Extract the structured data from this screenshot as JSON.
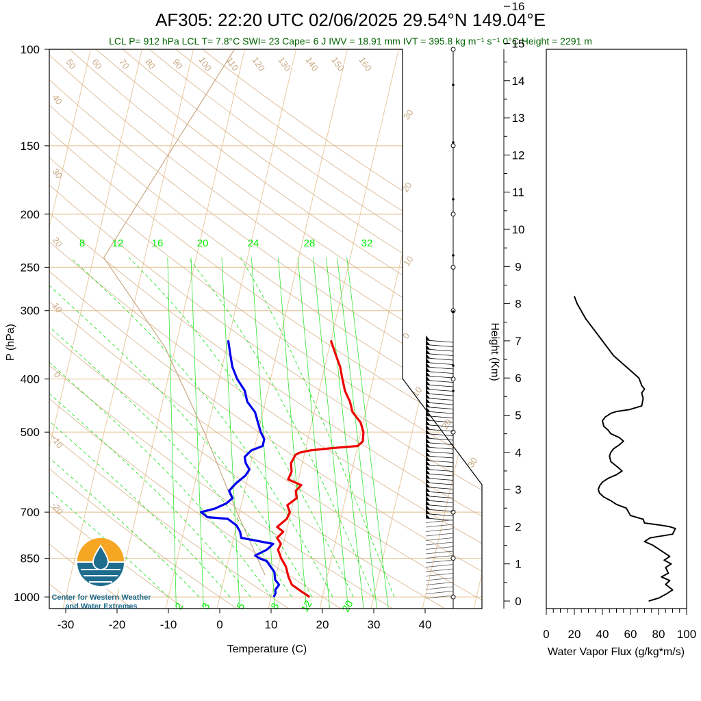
{
  "header": {
    "title": "AF305: 22:20 UTC 02/06/2025  29.54°N 149.04°E",
    "indices": "LCL P= 912 hPa  LCL T= 7.8°C  SWI= 23  Cape= 6 J  IWV = 18.91 mm  IVT = 395.8 kg m⁻¹ s⁻¹  0°C Height = 2291 m"
  },
  "logo": {
    "line1": "Center for Western Weather",
    "line2": "and Water Extremes"
  },
  "colors": {
    "temperature": "#ee0000",
    "dewpoint": "#0000ee",
    "dry_adiabat": "#d2a679",
    "moist_adiabat": "#00dd00",
    "isobar": "#e8c9a0",
    "parcel": "#c8a882"
  },
  "chart_data": [
    {
      "type": "line",
      "subtype": "skew-T log-p",
      "xlabel": "Temperature (C)",
      "ylabel": "P (hPa)",
      "right_label": "Height (Km)",
      "x_ticks": [
        -30,
        -20,
        -10,
        0,
        10,
        20,
        30,
        40
      ],
      "p_ticks": [
        100,
        150,
        200,
        250,
        300,
        400,
        500,
        700,
        850,
        1000
      ],
      "height_ticks": [
        0,
        1,
        2,
        3,
        4,
        5,
        6,
        7,
        8,
        9,
        10,
        11,
        12,
        13,
        14,
        15,
        16
      ],
      "xlim": [
        -34,
        50
      ],
      "plim": [
        1050,
        100
      ],
      "mixing_ratio_labels": [
        "8",
        "12",
        "16",
        "20",
        "24",
        "28",
        "32"
      ],
      "mixing_ratio_low_labels": [
        "2",
        "3",
        "5",
        "8",
        "12",
        "20"
      ],
      "theta_labels_top": [
        "50",
        "60",
        "70",
        "80",
        "90",
        "100",
        "110",
        "120",
        "130",
        "140",
        "150",
        "160"
      ],
      "theta_labels_left": [
        "40",
        "30",
        "20",
        "10",
        "0",
        "-10",
        "-20"
      ],
      "theta_labels_right": [
        "30",
        "20",
        "10",
        "0",
        "10",
        "20",
        "30"
      ],
      "series": [
        {
          "name": "Temperature",
          "points": [
            [
              17.5,
              1000
            ],
            [
              15.5,
              975
            ],
            [
              13.5,
              950
            ],
            [
              12.5,
              920
            ],
            [
              11.5,
              880
            ],
            [
              10.2,
              850
            ],
            [
              9.2,
              820
            ],
            [
              9.5,
              800
            ],
            [
              8.5,
              780
            ],
            [
              9.4,
              760
            ],
            [
              8.0,
              745
            ],
            [
              9.5,
              720
            ],
            [
              9.8,
              700
            ],
            [
              9.0,
              680
            ],
            [
              10.5,
              660
            ],
            [
              10.0,
              640
            ],
            [
              10.8,
              625
            ],
            [
              8.0,
              610
            ],
            [
              8.3,
              590
            ],
            [
              7.8,
              570
            ],
            [
              8.3,
              550
            ],
            [
              9.0,
              545
            ],
            [
              11.0,
              540
            ],
            [
              15.0,
              535
            ],
            [
              20.0,
              530
            ],
            [
              20.8,
              520
            ],
            [
              20.5,
              500
            ],
            [
              19.5,
              480
            ],
            [
              17.5,
              460
            ],
            [
              16.5,
              440
            ],
            [
              15.0,
              420
            ],
            [
              14.0,
              400
            ],
            [
              13.0,
              380
            ],
            [
              11.5,
              360
            ],
            [
              10.0,
              340
            ]
          ]
        },
        {
          "name": "Dewpoint",
          "points": [
            [
              10.5,
              1000
            ],
            [
              10.7,
              985
            ],
            [
              10.5,
              970
            ],
            [
              11.0,
              950
            ],
            [
              10.0,
              930
            ],
            [
              9.5,
              900
            ],
            [
              8.5,
              880
            ],
            [
              7.5,
              860
            ],
            [
              6.0,
              850
            ],
            [
              5.0,
              840
            ],
            [
              7.0,
              820
            ],
            [
              8.0,
              800
            ],
            [
              1.5,
              780
            ],
            [
              1.0,
              760
            ],
            [
              0.0,
              740
            ],
            [
              -2.0,
              720
            ],
            [
              -6.0,
              715
            ],
            [
              -7.5,
              700
            ],
            [
              -5.0,
              690
            ],
            [
              -3.0,
              675
            ],
            [
              -2.0,
              660
            ],
            [
              -3.0,
              640
            ],
            [
              -2.0,
              620
            ],
            [
              -0.5,
              600
            ],
            [
              0.0,
              585
            ],
            [
              -1.0,
              570
            ],
            [
              -1.5,
              555
            ],
            [
              -0.5,
              540
            ],
            [
              1.5,
              530
            ],
            [
              1.5,
              515
            ],
            [
              0.5,
              500
            ],
            [
              -0.5,
              480
            ],
            [
              -1.5,
              460
            ],
            [
              -3.5,
              440
            ],
            [
              -4.5,
              420
            ],
            [
              -6.5,
              400
            ],
            [
              -8.0,
              380
            ],
            [
              -9.0,
              360
            ],
            [
              -10.0,
              340
            ]
          ]
        },
        {
          "name": "Parcel",
          "points": [
            [
              7.8,
              912
            ],
            [
              -0.5,
              700
            ],
            [
              -10.5,
              500
            ],
            [
              -22.0,
              350
            ],
            [
              -38.0,
              240
            ],
            [
              -22.0,
              100
            ]
          ]
        }
      ]
    },
    {
      "type": "line",
      "xlabel": "Water Vapor Flux (g/kg*m/s)",
      "x_ticks": [
        0,
        20,
        40,
        60,
        80,
        100
      ],
      "xlim": [
        0,
        100
      ],
      "ylim": [
        -0.2,
        16.3
      ],
      "series": [
        {
          "name": "Water Vapor Flux",
          "points": [
            [
              73,
              0.0
            ],
            [
              80,
              0.08
            ],
            [
              86,
              0.2
            ],
            [
              90,
              0.3
            ],
            [
              85,
              0.45
            ],
            [
              88,
              0.55
            ],
            [
              82,
              0.65
            ],
            [
              87,
              0.75
            ],
            [
              85,
              0.9
            ],
            [
              89,
              1.0
            ],
            [
              84,
              1.1
            ],
            [
              88,
              1.2
            ],
            [
              82,
              1.35
            ],
            [
              76,
              1.5
            ],
            [
              70,
              1.6
            ],
            [
              74,
              1.7
            ],
            [
              90,
              1.8
            ],
            [
              92,
              1.95
            ],
            [
              88,
              2.0
            ],
            [
              80,
              2.05
            ],
            [
              70,
              2.1
            ],
            [
              69,
              2.2
            ],
            [
              60,
              2.3
            ],
            [
              57,
              2.5
            ],
            [
              50,
              2.6
            ],
            [
              46,
              2.7
            ],
            [
              41,
              2.8
            ],
            [
              38,
              2.9
            ],
            [
              37,
              3.0
            ],
            [
              38,
              3.1
            ],
            [
              40,
              3.2
            ],
            [
              44,
              3.3
            ],
            [
              50,
              3.4
            ],
            [
              54,
              3.5
            ],
            [
              51,
              3.6
            ],
            [
              46,
              3.75
            ],
            [
              45,
              3.9
            ],
            [
              46,
              4.0
            ],
            [
              48,
              4.1
            ],
            [
              52,
              4.2
            ],
            [
              55,
              4.3
            ],
            [
              52,
              4.4
            ],
            [
              46,
              4.5
            ],
            [
              44,
              4.6
            ],
            [
              41,
              4.7
            ],
            [
              40,
              4.85
            ],
            [
              42,
              4.95
            ],
            [
              46,
              5.05
            ],
            [
              50,
              5.1
            ],
            [
              59,
              5.15
            ],
            [
              68,
              5.25
            ],
            [
              69,
              5.45
            ],
            [
              68,
              5.6
            ],
            [
              70,
              5.7
            ],
            [
              68,
              5.8
            ],
            [
              66,
              6.0
            ],
            [
              60,
              6.2
            ],
            [
              54,
              6.4
            ],
            [
              48,
              6.6
            ],
            [
              44,
              6.8
            ],
            [
              40,
              7.0
            ],
            [
              36,
              7.2
            ],
            [
              32,
              7.4
            ],
            [
              28,
              7.6
            ],
            [
              25,
              7.8
            ],
            [
              22,
              8.0
            ],
            [
              21,
              8.1
            ],
            [
              20,
              8.2
            ]
          ]
        }
      ]
    }
  ]
}
